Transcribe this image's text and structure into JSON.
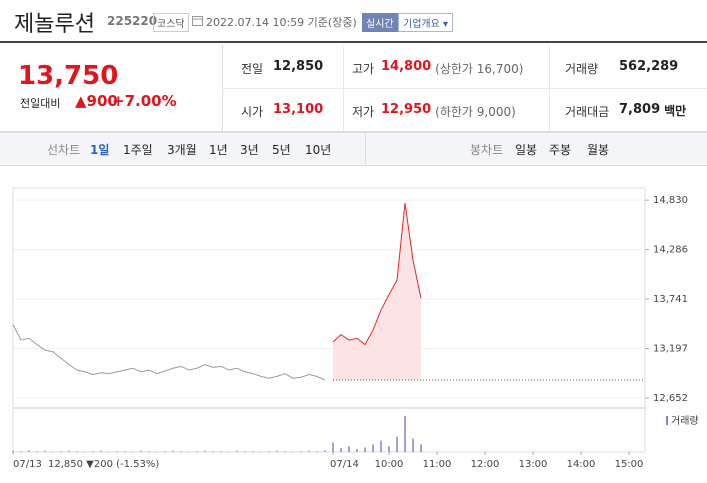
{
  "header": {
    "name": "제놀루션",
    "code": "225220",
    "market": "코스닥",
    "timestamp": "2022.07.14 10:59 기준(장중)",
    "realtime": "실시간",
    "company_info": "기업개요"
  },
  "quote": {
    "price": "13,750",
    "change_label": "전일대비",
    "change": "▲900",
    "change_pct": "+7.00%",
    "stats": [
      [
        {
          "label": "전일",
          "value": "12,850"
        },
        {
          "label": "고가",
          "value": "14,800",
          "note": "(상한가 16,700)"
        },
        {
          "label": "거래량",
          "value": "562,289"
        }
      ],
      [
        {
          "label": "시가",
          "value": "13,100"
        },
        {
          "label": "저가",
          "value": "12,950",
          "note": "(하한가 9,000)"
        },
        {
          "label": "거래대금",
          "value": "7,809",
          "unit": "백만"
        }
      ]
    ]
  },
  "tabs": {
    "line_label": "선차트",
    "line_tabs": [
      "1일",
      "1주일",
      "3개월",
      "1년",
      "3년",
      "5년",
      "10년"
    ],
    "candle_label": "봉차트",
    "candle_tabs": [
      "일봉",
      "주봉",
      "월봉"
    ]
  },
  "chart_data": {
    "type": "line",
    "categories": [
      "07/13",
      null,
      null,
      null,
      null,
      null,
      null,
      null,
      null,
      null,
      null,
      null,
      null,
      null,
      null,
      null,
      null,
      null,
      null,
      null,
      null,
      null,
      null,
      null,
      null,
      null,
      null,
      null,
      null,
      null,
      null,
      null,
      null,
      null,
      null,
      null,
      null,
      null,
      null,
      null,
      "07/14",
      null,
      null,
      null,
      null,
      null,
      null,
      "10:00",
      null,
      null,
      null,
      null,
      null,
      "11:00",
      null,
      null,
      null,
      null,
      null,
      "12:00",
      null,
      null,
      null,
      null,
      null,
      "13:00",
      null,
      null,
      null,
      null,
      null,
      "14:00",
      null,
      null,
      null,
      null,
      null,
      "15:00",
      null,
      null
    ],
    "series": [
      {
        "color": "#9a9a9a",
        "values": [
          13460,
          13290,
          13310,
          13240,
          13180,
          13160,
          13090,
          13020,
          12960,
          12940,
          12910,
          12930,
          12920,
          12940,
          12960,
          12980,
          12940,
          12960,
          12920,
          12950,
          12980,
          13000,
          12960,
          12980,
          13020,
          12990,
          13000,
          12960,
          12980,
          12940,
          12920,
          12890,
          12870,
          12890,
          12920,
          12870,
          12880,
          12910,
          12890,
          12850,
          null,
          null,
          null,
          null,
          null,
          null,
          null,
          null,
          null,
          null,
          null,
          null,
          null,
          null,
          null,
          null,
          null,
          null,
          null,
          null,
          null,
          null,
          null,
          null,
          null,
          null,
          null,
          null,
          null,
          null,
          null,
          null,
          null,
          null,
          null,
          null,
          null,
          null,
          null,
          null
        ]
      },
      {
        "color": "#e02a2a",
        "fill": "#fde4e4",
        "values": [
          null,
          null,
          null,
          null,
          null,
          null,
          null,
          null,
          null,
          null,
          null,
          null,
          null,
          null,
          null,
          null,
          null,
          null,
          null,
          null,
          null,
          null,
          null,
          null,
          null,
          null,
          null,
          null,
          null,
          null,
          null,
          null,
          null,
          null,
          null,
          null,
          null,
          null,
          null,
          null,
          13270,
          13350,
          13290,
          13310,
          13240,
          13400,
          13620,
          13790,
          13950,
          14800,
          14170,
          13750,
          null,
          null,
          null,
          null,
          null,
          null,
          null,
          null,
          null,
          null,
          null,
          null,
          null,
          null,
          null,
          null,
          null,
          null,
          null,
          null,
          null,
          null,
          null,
          null,
          null,
          null,
          null,
          null
        ]
      }
    ],
    "ylim": [
      12542,
      14964
    ],
    "yticks": [
      {
        "value": 12652,
        "label": "12,652"
      },
      {
        "value": 13197,
        "label": "13,197"
      },
      {
        "value": 13741,
        "label": "13,741"
      },
      {
        "value": 14286,
        "label": "14,286"
      },
      {
        "value": 14830,
        "label": "14,830"
      }
    ],
    "grid": true,
    "baseline": 12850,
    "volume": {
      "name": "거래량",
      "color": "#8b7fd0",
      "vlim": [
        0,
        100
      ],
      "values": [
        3,
        2,
        4,
        2,
        3,
        1,
        2,
        3,
        2,
        1,
        2,
        3,
        1,
        2,
        2,
        1,
        3,
        2,
        1,
        2,
        3,
        2,
        1,
        2,
        3,
        2,
        2,
        1,
        3,
        2,
        2,
        1,
        2,
        3,
        2,
        1,
        2,
        3,
        2,
        4,
        25,
        10,
        15,
        8,
        12,
        20,
        30,
        15,
        40,
        95,
        35,
        20,
        null,
        null,
        null,
        null,
        null,
        null,
        null,
        null,
        null,
        null,
        null,
        null,
        null,
        null,
        null,
        null,
        null,
        null,
        null,
        null,
        null,
        null,
        null,
        null,
        null,
        null,
        null,
        null
      ]
    },
    "prev_info": "12,850 ▼200 (-1.53%)"
  }
}
